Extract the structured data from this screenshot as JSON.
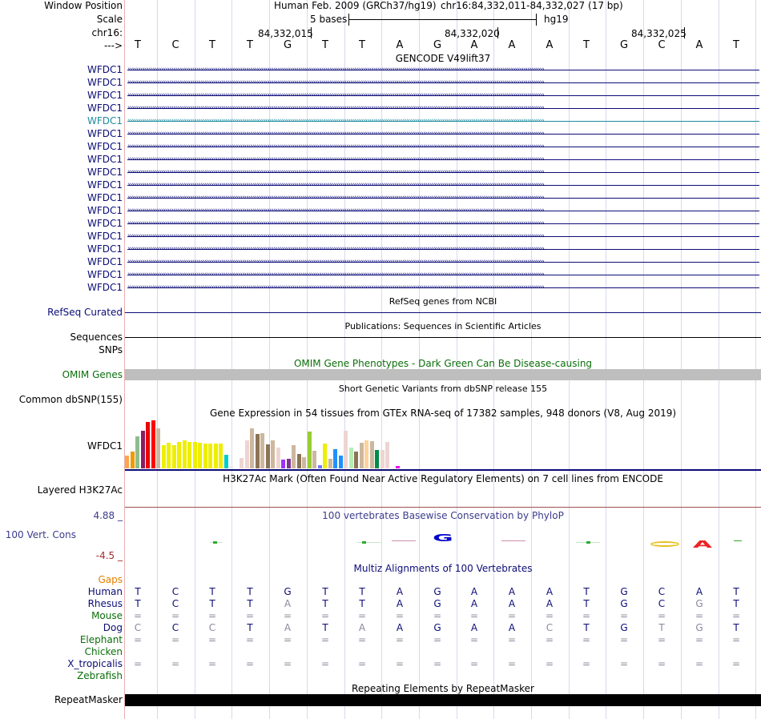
{
  "header": {
    "window_position_label": "Window Position",
    "scale_label": "Scale",
    "chrom_label": "chr16:",
    "strand_label": "--->",
    "assembly_text": "Human Feb. 2009 (GRCh37/hg19)",
    "position_text": "chr16:84,332,011-84,332,027 (17 bp)",
    "scale_bar_text": "5 bases",
    "scale_db": "hg19",
    "coords": [
      "84,332,015",
      "84,332,020",
      "84,332,025"
    ]
  },
  "bases": [
    "T",
    "C",
    "T",
    "T",
    "G",
    "T",
    "T",
    "A",
    "G",
    "A",
    "A",
    "A",
    "T",
    "G",
    "C",
    "A",
    "T"
  ],
  "gencode": {
    "title": "GENCODE V49lift37",
    "genes": [
      "WFDC1",
      "WFDC1",
      "WFDC1",
      "WFDC1",
      "WFDC1",
      "WFDC1",
      "WFDC1",
      "WFDC1",
      "WFDC1",
      "WFDC1",
      "WFDC1",
      "WFDC1",
      "WFDC1",
      "WFDC1",
      "WFDC1",
      "WFDC1",
      "WFDC1",
      "WFDC1"
    ],
    "highlight_index": 4,
    "colors": {
      "normal": "#0c0c78",
      "highlight": "#1e8ca0"
    }
  },
  "refseq": {
    "title": "RefSeq genes from NCBI",
    "label": "RefSeq Curated"
  },
  "publications": {
    "title": "Publications: Sequences in Scientific Articles",
    "label1": "Sequences",
    "label2": "SNPs"
  },
  "omim": {
    "title": "OMIM Gene Phenotypes - Dark Green Can Be Disease-causing",
    "label": "OMIM Genes",
    "color": "#0b6e0b"
  },
  "dbsnp": {
    "title": "Short Genetic Variants from dbSNP release 155",
    "label": "Common dbSNP(155)"
  },
  "gtex": {
    "title": "Gene Expression in 54 tissues from GTEx RNA-seq of 17382 samples, 948 donors (V8, Aug 2019)",
    "label": "WFDC1",
    "levels": [
      0.26,
      0.35,
      0.67,
      0.78,
      0.97,
      1.0,
      0.84,
      0.48,
      0.53,
      0.48,
      0.55,
      0.59,
      0.55,
      0.55,
      0.53,
      0.52,
      0.52,
      0.51,
      0.51,
      0.29,
      0.05,
      0.0,
      0.21,
      0.59,
      0.83,
      0.71,
      0.73,
      0.5,
      0.58,
      0.44,
      0.19,
      0.2,
      0.48,
      0.3,
      0.24,
      0.77,
      0.37,
      0.07,
      0.51,
      0.2,
      0.4,
      0.27,
      0.78,
      0.43,
      0.35,
      0.54,
      0.59,
      0.57,
      0.38,
      0.38,
      0.55,
      0.0,
      0.05,
      0.0
    ],
    "colors": [
      "#ffa54f",
      "#ee9a00",
      "#8fbc8f",
      "#8b1c62",
      "#ee0000",
      "#ff0000",
      "#cdb79e",
      "#eeee00",
      "#eeee00",
      "#eeee00",
      "#eeee00",
      "#eeee00",
      "#eeee00",
      "#eeee00",
      "#eeee00",
      "#eeee00",
      "#eeee00",
      "#eeee00",
      "#eeee00",
      "#00cdcd",
      "#eee9e9",
      "#9ac0cd",
      "#eed5d2",
      "#eed5d2",
      "#cdb79e",
      "#8b7355",
      "#cdb79e",
      "#8b7355",
      "#cdb79e",
      "#eed5d2",
      "#9b30ff",
      "#7a378b",
      "#cdb79e",
      "#8b7355",
      "#cdb79e",
      "#9acd32",
      "#cdb79e",
      "#7777ff",
      "#eeee00",
      "#cdb79e",
      "#1e90ff",
      "#1e90ff",
      "#eed5d2",
      "#b4eeb4",
      "#8b7355",
      "#cdb79e",
      "#ffd39b",
      "#cdb79e",
      "#008b45",
      "#eed5d2",
      "#eed5d2",
      "#ffffff",
      "#ee00ee",
      "#ffffff"
    ]
  },
  "h3k27ac": {
    "title": "H3K27Ac Mark (Often Found Near Active Regulatory Elements) on 7 cell lines from ENCODE",
    "label": "Layered H3K27Ac"
  },
  "phylop": {
    "title": "100 vertebrates Basewise Conservation by PhyloP",
    "label": "100 Vert. Cons",
    "max": "4.88 _",
    "min": "-4.5 _",
    "color": "#3c3c8c"
  },
  "multiz": {
    "title": "Multiz Alignments of 100 Vertebrates",
    "gaps_label": "Gaps",
    "rows": [
      {
        "species": "Human",
        "color": "#0c0c78",
        "seq": [
          "T",
          "C",
          "T",
          "T",
          "G",
          "T",
          "T",
          "A",
          "G",
          "A",
          "A",
          "A",
          "T",
          "G",
          "C",
          "A",
          "T"
        ]
      },
      {
        "species": "Rhesus",
        "color": "#0c0c78",
        "seq": [
          "T",
          "C",
          "T",
          "T",
          "A",
          "T",
          "T",
          "A",
          "G",
          "A",
          "A",
          "A",
          "T",
          "G",
          "C",
          "G",
          "T"
        ]
      },
      {
        "species": "Mouse",
        "color": "#0b6e0b",
        "seq": [
          "=",
          "=",
          "=",
          "=",
          "=",
          "=",
          "=",
          "=",
          "=",
          "=",
          "=",
          "=",
          "=",
          "=",
          "=",
          "=",
          "="
        ]
      },
      {
        "species": "Dog",
        "color": "#0c0c78",
        "seq": [
          "C",
          "C",
          "C",
          "T",
          "A",
          "T",
          "A",
          "A",
          "G",
          "A",
          "A",
          "C",
          "T",
          "G",
          "T",
          "G",
          "T"
        ]
      },
      {
        "species": "Elephant",
        "color": "#0b6e0b",
        "seq": [
          "=",
          "=",
          "=",
          "=",
          "=",
          "=",
          "=",
          "=",
          "=",
          "=",
          "=",
          "=",
          "=",
          "=",
          "=",
          "=",
          "="
        ]
      },
      {
        "species": "Chicken",
        "color": "#0b6e0b",
        "seq": [
          "",
          "",
          "",
          "",
          "",
          "",
          "",
          "",
          "",
          "",
          "",
          "",
          "",
          "",
          "",
          "",
          ""
        ]
      },
      {
        "species": "X_tropicalis",
        "color": "#0c0c78",
        "seq": [
          "=",
          "=",
          "=",
          "=",
          "=",
          "=",
          "=",
          "=",
          "=",
          "=",
          "=",
          "=",
          "=",
          "=",
          "=",
          "=",
          "="
        ]
      },
      {
        "species": "Zebrafish",
        "color": "#0b6e0b",
        "seq": [
          "",
          "",
          "",
          "",
          "",
          "",
          "",
          "",
          "",
          "",
          "",
          "",
          "",
          "",
          "",
          "",
          ""
        ]
      }
    ]
  },
  "repeatmasker": {
    "title": "Repeating Elements by RepeatMasker",
    "label": "RepeatMasker"
  }
}
